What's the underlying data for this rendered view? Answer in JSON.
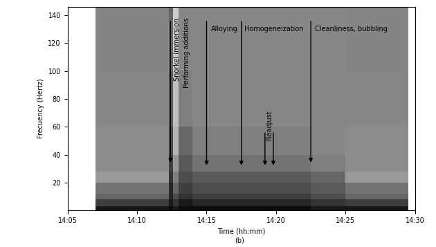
{
  "chart_data": {
    "type": "spectrogram",
    "x_label": "Time (hh:mm)",
    "y_label": "Frecuency (Hertz)",
    "caption": "(b)",
    "xlim": [
      845,
      870
    ],
    "xticks": [
      {
        "value": 845,
        "label": "14:05"
      },
      {
        "value": 850,
        "label": "14:10"
      },
      {
        "value": 855,
        "label": "14:15"
      },
      {
        "value": 860,
        "label": "14:20"
      },
      {
        "value": 865,
        "label": "14:25"
      },
      {
        "value": 870,
        "label": "14:30"
      }
    ],
    "ylim": [
      0,
      146
    ],
    "yticks": [
      20,
      40,
      60,
      80,
      100,
      120,
      140
    ],
    "x_edges": [
      847,
      849,
      851,
      852.3,
      852.6,
      853,
      854,
      856,
      858,
      860,
      862.5,
      865,
      867,
      869.5
    ],
    "y_edges": [
      0,
      3,
      8,
      12,
      20,
      28,
      40,
      60,
      100,
      146
    ],
    "color_range": [
      0,
      1
    ],
    "cells": [
      [
        0.9,
        0.9,
        0.9,
        0.95,
        0.9,
        0.95,
        0.95,
        0.95,
        0.95,
        0.95,
        0.9,
        0.9,
        0.9
      ],
      [
        0.75,
        0.75,
        0.75,
        0.9,
        0.8,
        0.9,
        0.85,
        0.85,
        0.85,
        0.85,
        0.8,
        0.75,
        0.75
      ],
      [
        0.6,
        0.6,
        0.6,
        0.85,
        0.7,
        0.8,
        0.75,
        0.75,
        0.75,
        0.75,
        0.7,
        0.6,
        0.6
      ],
      [
        0.55,
        0.55,
        0.55,
        0.85,
        0.6,
        0.75,
        0.7,
        0.7,
        0.7,
        0.7,
        0.65,
        0.55,
        0.55
      ],
      [
        0.4,
        0.4,
        0.4,
        0.8,
        0.5,
        0.7,
        0.65,
        0.65,
        0.65,
        0.65,
        0.6,
        0.4,
        0.4
      ],
      [
        0.45,
        0.45,
        0.45,
        0.75,
        0.4,
        0.65,
        0.55,
        0.55,
        0.55,
        0.55,
        0.5,
        0.45,
        0.45
      ],
      [
        0.45,
        0.45,
        0.45,
        0.7,
        0.3,
        0.6,
        0.5,
        0.5,
        0.5,
        0.5,
        0.47,
        0.45,
        0.45
      ],
      [
        0.47,
        0.47,
        0.47,
        0.65,
        0.25,
        0.5,
        0.47,
        0.47,
        0.47,
        0.47,
        0.47,
        0.47,
        0.47
      ],
      [
        0.48,
        0.48,
        0.48,
        0.6,
        0.2,
        0.47,
        0.47,
        0.47,
        0.47,
        0.47,
        0.47,
        0.48,
        0.48
      ]
    ],
    "arrows": [
      {
        "x": 852.4,
        "from": 137,
        "to": 33
      },
      {
        "x": 855,
        "from": 137,
        "to": 31
      },
      {
        "x": 857.5,
        "from": 137,
        "to": 31
      },
      {
        "x": 859.2,
        "from": 57,
        "to": 31
      },
      {
        "x": 859.8,
        "from": 57,
        "to": 31
      },
      {
        "x": 862.5,
        "from": 137,
        "to": 33
      }
    ],
    "annotations": [
      {
        "text": "Alloying",
        "x": 855.3,
        "y": 130
      },
      {
        "text": "Homogeneization",
        "x": 857.7,
        "y": 130
      },
      {
        "text": "Cleanliness, bubbling",
        "x": 862.8,
        "y": 130
      }
    ],
    "vertical_annotations": [
      {
        "text": "Snorkel immersion",
        "x": 852.9,
        "y": 138
      },
      {
        "text": "Performing additions",
        "x": 853.6,
        "y": 138
      },
      {
        "text": "Readjust",
        "x": 859.5,
        "y": 72
      }
    ]
  }
}
